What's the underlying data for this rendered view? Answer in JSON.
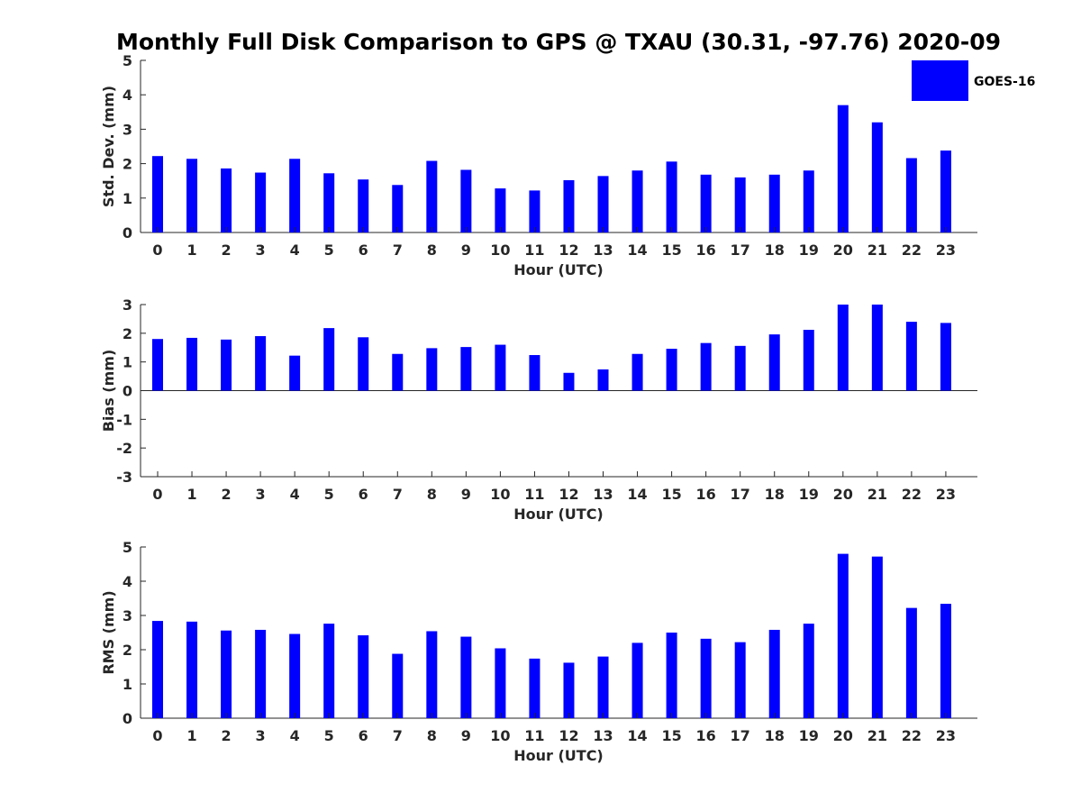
{
  "chart_data": {
    "type": "bar",
    "title": "Monthly Full Disk Comparison to GPS @ TXAU (30.31, -97.76) 2020-09",
    "legend": {
      "label": "GOES-16",
      "color": "#0000ff",
      "placement": "top-right"
    },
    "categories": [
      "0",
      "1",
      "2",
      "3",
      "4",
      "5",
      "6",
      "7",
      "8",
      "9",
      "10",
      "11",
      "12",
      "13",
      "14",
      "15",
      "16",
      "17",
      "18",
      "19",
      "20",
      "21",
      "22",
      "23"
    ],
    "panels": [
      {
        "id": "std",
        "ylabel": "Std. Dev. (mm)",
        "xlabel": "Hour (UTC)",
        "ylim": [
          0,
          5
        ],
        "yticks": [
          "0",
          "1",
          "2",
          "3",
          "4",
          "5"
        ],
        "values": [
          2.22,
          2.14,
          1.86,
          1.74,
          2.14,
          1.72,
          1.54,
          1.38,
          2.08,
          1.82,
          1.28,
          1.22,
          1.52,
          1.64,
          1.8,
          2.06,
          1.68,
          1.6,
          1.68,
          1.8,
          3.7,
          3.2,
          2.16,
          2.38
        ]
      },
      {
        "id": "bias",
        "ylabel": "Bias (mm)",
        "xlabel": "Hour (UTC)",
        "ylim": [
          -3,
          3
        ],
        "yticks": [
          "-3",
          "-2",
          "-1",
          "0",
          "1",
          "2",
          "3"
        ],
        "values": [
          1.8,
          1.84,
          1.78,
          1.9,
          1.22,
          2.18,
          1.86,
          1.28,
          1.48,
          1.52,
          1.6,
          1.24,
          0.62,
          0.74,
          1.28,
          1.46,
          1.66,
          1.56,
          1.96,
          2.12,
          3.0,
          3.0,
          2.4,
          2.36
        ]
      },
      {
        "id": "rms",
        "ylabel": "RMS (mm)",
        "xlabel": "Hour (UTC)",
        "ylim": [
          0,
          5
        ],
        "yticks": [
          "0",
          "1",
          "2",
          "3",
          "4",
          "5"
        ],
        "values": [
          2.84,
          2.82,
          2.56,
          2.58,
          2.46,
          2.76,
          2.42,
          1.88,
          2.54,
          2.38,
          2.04,
          1.74,
          1.62,
          1.8,
          2.2,
          2.5,
          2.32,
          2.22,
          2.58,
          2.76,
          4.8,
          4.72,
          3.22,
          3.34
        ]
      }
    ]
  }
}
